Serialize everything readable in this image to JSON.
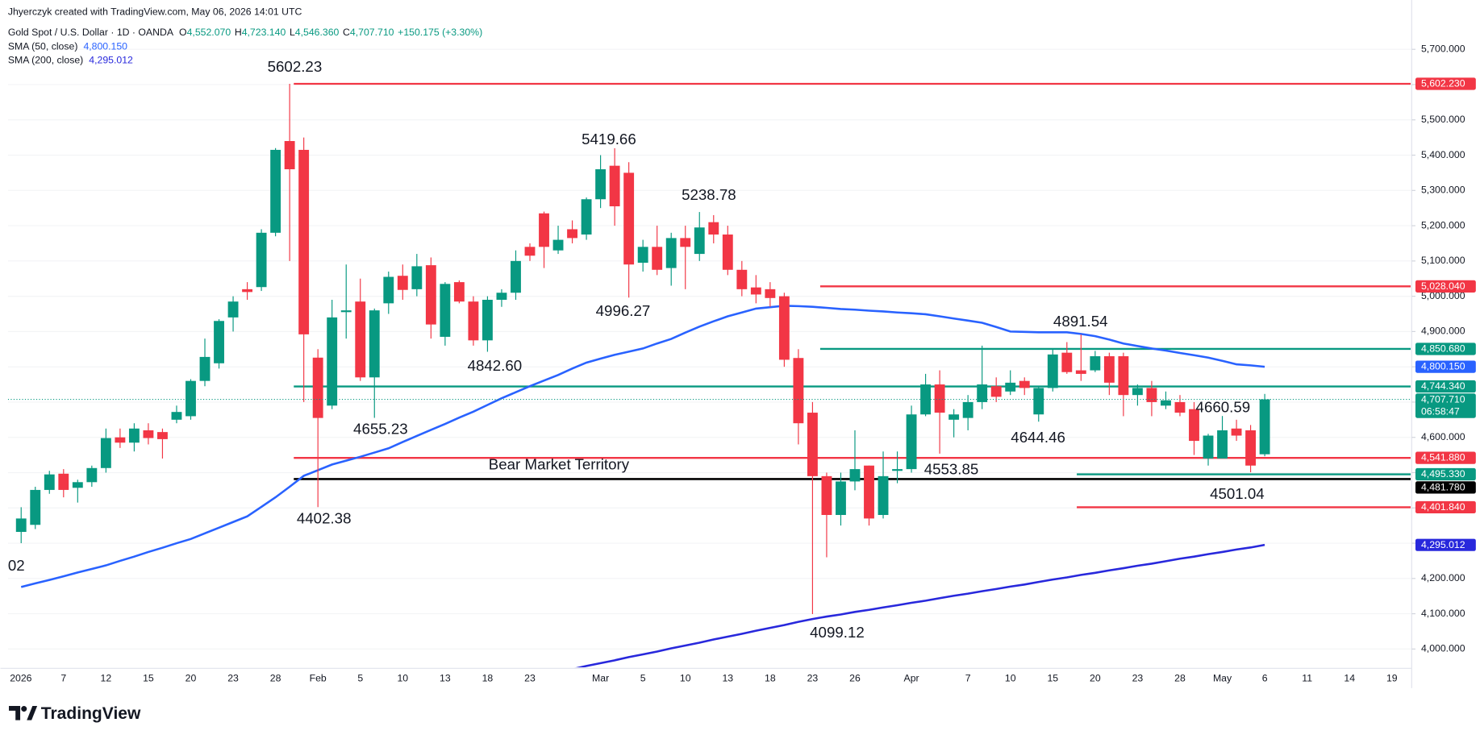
{
  "chart_data": {
    "type": "candlestick",
    "credit": "Jhyerczyk created with TradingView.com, May 06, 2026 14:01 UTC",
    "title": "Gold Spot / U.S. Dollar · 1D · OANDA",
    "ohlc_legend": [
      {
        "key": "O",
        "value": "4,552.070"
      },
      {
        "key": "H",
        "value": "4,723.140"
      },
      {
        "key": "L",
        "value": "4,546.360"
      },
      {
        "key": "C",
        "value": "4,707.710"
      }
    ],
    "change": "+150.175 (+3.30%)",
    "up_color": "#089981",
    "down_color": "#f23645",
    "categories": [
      "2026",
      null,
      null,
      "7",
      null,
      null,
      "12",
      null,
      null,
      "15",
      null,
      null,
      "20",
      null,
      null,
      "23",
      null,
      null,
      "28",
      null,
      null,
      "Feb",
      null,
      null,
      "5",
      null,
      null,
      "10",
      null,
      null,
      "13",
      null,
      null,
      "18",
      null,
      null,
      "23",
      null,
      null,
      null,
      null,
      "Mar",
      null,
      null,
      "5",
      null,
      null,
      "10",
      null,
      null,
      "13",
      null,
      null,
      "18",
      null,
      null,
      "23",
      null,
      null,
      "26",
      null,
      null,
      null,
      "Apr",
      null,
      null,
      null,
      "7",
      null,
      null,
      "10",
      null,
      null,
      "15",
      null,
      null,
      "20",
      null,
      null,
      "23",
      null,
      null,
      "28",
      null,
      null,
      "May",
      null,
      null,
      "6",
      null,
      null,
      "11",
      null,
      null,
      "14",
      null,
      null,
      "19"
    ],
    "open": [
      4332,
      4352,
      4451,
      4497,
      4457,
      4473,
      4513,
      4600,
      4585,
      4620,
      4615,
      4650,
      4660,
      4760,
      4810,
      4940,
      5020,
      5026,
      5180,
      5440,
      5415,
      4826,
      4690,
      4955,
      4985,
      4770,
      4980,
      5058,
      5020,
      5088,
      4885,
      5040,
      4985,
      4875,
      4990,
      5010,
      5140,
      5235,
      5130,
      5190,
      5175,
      5275,
      5370,
      5350,
      5095,
      5140,
      5080,
      5165,
      5120,
      5210,
      5175,
      5075,
      5025,
      5020,
      5000,
      4825,
      4670,
      4490,
      4380,
      4475,
      4520,
      4380,
      4505,
      4510,
      4665,
      4750,
      4650,
      4655,
      4700,
      4745,
      4730,
      4760,
      4665,
      4740,
      4840,
      4790,
      4790,
      4830,
      4830,
      4720,
      4740,
      4690,
      4700,
      4680,
      4540,
      4540,
      4625,
      4620,
      4552.07,
      null,
      null,
      null,
      null,
      null,
      null,
      null,
      null,
      null
    ],
    "high": [
      4402,
      4460,
      4505,
      4510,
      4480,
      4520,
      4625,
      4625,
      4640,
      4640,
      4625,
      4690,
      4765,
      4880,
      4935,
      5000,
      5040,
      5190,
      5420,
      5602.23,
      5450,
      4850,
      4990,
      5090,
      5050,
      4965,
      5070,
      5090,
      5120,
      5110,
      5040,
      5045,
      5000,
      5000,
      5020,
      5130,
      5150,
      5240,
      5200,
      5215,
      5280,
      5400,
      5419.66,
      5380,
      5160,
      5200,
      5180,
      5200,
      5238.78,
      5230,
      5200,
      5100,
      5060,
      5040,
      5010,
      4850,
      4700,
      4500,
      4500,
      4620,
      4520,
      4560,
      4560,
      4690,
      4780,
      4790,
      4680,
      4720,
      4860,
      4770,
      4790,
      4770,
      4745,
      4850,
      4870,
      4891.54,
      4845,
      4840,
      4840,
      4750,
      4760,
      4730,
      4720,
      4700,
      4610,
      4660.59,
      4650,
      4635,
      4723.14,
      null,
      null,
      null,
      null,
      null,
      null,
      null,
      null,
      null
    ],
    "low": [
      4300,
      4340,
      4440,
      4430,
      4415,
      4460,
      4500,
      4570,
      4560,
      4580,
      4540,
      4640,
      4650,
      4745,
      4795,
      4900,
      4990,
      5015,
      5170,
      5100,
      4700,
      4402.38,
      4680,
      4880,
      4760,
      4655.23,
      4950,
      4990,
      5000,
      4880,
      4860,
      4980,
      4860,
      4842.6,
      4970,
      4990,
      5100,
      5080,
      5120,
      5150,
      5160,
      5250,
      5200,
      4996.27,
      5070,
      5060,
      5030,
      5020,
      5100,
      5150,
      5060,
      5000,
      4980,
      4970,
      4800,
      4580,
      4099.12,
      4260,
      4350,
      4450,
      4350,
      4370,
      4470,
      4500,
      4660,
      4553.85,
      4600,
      4620,
      4680,
      4700,
      4720,
      4720,
      4644.46,
      4730,
      4780,
      4760,
      4785,
      4720,
      4660,
      4690,
      4660,
      4680,
      4660,
      4550,
      4520,
      4540,
      4590,
      4501.04,
      4546.36,
      null,
      null,
      null,
      null,
      null,
      null,
      null,
      null,
      null
    ],
    "close": [
      4370,
      4451,
      4495,
      4451,
      4473,
      4513,
      4598,
      4585,
      4625,
      4598,
      4595,
      4672,
      4760,
      4828,
      4930,
      4985,
      5012,
      5180,
      5415,
      5360,
      4892,
      4655,
      4940,
      4960,
      4770,
      4960,
      5055,
      5018,
      5085,
      4920,
      5035,
      4985,
      4875,
      4990,
      5010,
      5100,
      5115,
      5140,
      5160,
      5165,
      5275,
      5360,
      5255,
      5090,
      5140,
      5075,
      5165,
      5140,
      5195,
      5175,
      5075,
      5020,
      5005,
      4995,
      4820,
      4640,
      4490,
      4380,
      4475,
      4510,
      4370,
      4490,
      4510,
      4665,
      4750,
      4670,
      4665,
      4700,
      4750,
      4715,
      4755,
      4740,
      4740,
      4835,
      4785,
      4780,
      4830,
      4755,
      4720,
      4740,
      4700,
      4705,
      4670,
      4590,
      4605,
      4620,
      4605,
      4520,
      4707.71,
      null,
      null,
      null,
      null,
      null,
      null,
      null,
      null,
      null
    ],
    "overlays": [
      {
        "name": "SMA (50, close)",
        "last": "4,800.150",
        "color": "#2962ff",
        "values": [
          4176,
          4186,
          4196,
          4206,
          4217,
          4227,
          4237,
          4250,
          4262,
          4275,
          4287,
          4300,
          4312,
          4328,
          4344,
          4360,
          4376,
          4403,
          4430,
          4460,
          4491,
          4507,
          4523,
          4534,
          4545,
          4557,
          4569,
          4587,
          4604,
          4621,
          4638,
          4656,
          4673,
          4692,
          4711,
          4728,
          4745,
          4761,
          4777,
          4795,
          4812,
          4823,
          4834,
          4843,
          4852,
          4866,
          4879,
          4897,
          4914,
          4929,
          4943,
          4954,
          4965,
          4969,
          4973,
          4972,
          4970,
          4967,
          4964,
          4962,
          4959,
          4957,
          4954,
          4952,
          4949,
          4943,
          4937,
          4931,
          4925,
          4913,
          4900,
          4899,
          4898,
          4898,
          4898,
          4893,
          4887,
          4877,
          4866,
          4859,
          4852,
          4846,
          4839,
          4833,
          4826,
          4817,
          4807,
          4804,
          4800.15,
          null,
          null,
          null,
          null,
          null,
          null,
          null,
          null,
          null
        ]
      },
      {
        "name": "SMA (200, close)",
        "last": "4,295.012",
        "color": "#2828dc",
        "values": [
          null,
          null,
          null,
          null,
          null,
          null,
          null,
          null,
          null,
          null,
          null,
          null,
          null,
          null,
          null,
          null,
          null,
          null,
          null,
          null,
          null,
          null,
          null,
          null,
          null,
          null,
          null,
          null,
          null,
          null,
          null,
          null,
          null,
          null,
          null,
          null,
          null,
          null,
          3935,
          3943,
          3952,
          3960,
          3968,
          3977,
          3985,
          3993,
          4002,
          4010,
          4018,
          4027,
          4035,
          4043,
          4052,
          4060,
          4068,
          4077,
          4085,
          4092,
          4098,
          4105,
          4111,
          4118,
          4124,
          4131,
          4137,
          4144,
          4151,
          4157,
          4164,
          4170,
          4177,
          4183,
          4190,
          4197,
          4203,
          4210,
          4216,
          4223,
          4229,
          4236,
          4242,
          4249,
          4256,
          4262,
          4269,
          4275,
          4282,
          4288,
          4295.012,
          null,
          null,
          null,
          null,
          null,
          null,
          null,
          null,
          null
        ]
      }
    ],
    "levels": [
      {
        "value": 5602.23,
        "label": "5,602.230",
        "color": "#f23645"
      },
      {
        "value": 5028.04,
        "label": "5,028.040",
        "color": "#f23645"
      },
      {
        "value": 4850.68,
        "label": "4,850.680",
        "color": "#089981"
      },
      {
        "value": 4744.34,
        "label": "4,744.340",
        "color": "#089981"
      },
      {
        "value": 4541.88,
        "label": "4,541.880",
        "color": "#f23645"
      },
      {
        "value": 4481.78,
        "label": "4,481.780",
        "color": "#000000"
      },
      {
        "value": 4495.33,
        "label": "4,495.330",
        "color": "#089981"
      },
      {
        "value": 4401.84,
        "label": "4,401.840",
        "color": "#f23645"
      }
    ],
    "last_price": {
      "label": "4,707.710",
      "countdown": "06:58:47"
    },
    "annotations": [
      "02",
      "5602.23",
      "5419.66",
      "5238.78",
      "4996.27",
      "4842.60",
      "4655.23",
      "4402.38",
      "4099.12",
      "4891.54",
      "4644.46",
      "4553.85",
      "4660.59",
      "4501.04"
    ],
    "zone_label": "Bear Market Territory",
    "ylim": [
      3948,
      5765
    ],
    "yticks": [
      {
        "value": 4000,
        "label": "4,000.000"
      },
      {
        "value": 4100,
        "label": "4,100.000"
      },
      {
        "value": 4200,
        "label": "4,200.000"
      },
      {
        "value": 4300,
        "label": "4,300.000"
      },
      {
        "value": 4400,
        "label": "4,400.000"
      },
      {
        "value": 4500,
        "label": "4,500.000"
      },
      {
        "value": 4600,
        "label": "4,600.000"
      },
      {
        "value": 4700,
        "label": "4,700.000"
      },
      {
        "value": 4800,
        "label": "4,800.000"
      },
      {
        "value": 4900,
        "label": "4,900.000"
      },
      {
        "value": 5000,
        "label": "5,000.000"
      },
      {
        "value": 5100,
        "label": "5,100.000"
      },
      {
        "value": 5200,
        "label": "5,200.000"
      },
      {
        "value": 5300,
        "label": "5,300.000"
      },
      {
        "value": 5400,
        "label": "5,400.000"
      },
      {
        "value": 5500,
        "label": "5,500.000"
      },
      {
        "value": 5600,
        "label": "5,600.000"
      },
      {
        "value": 5700,
        "label": "5,700.000"
      }
    ],
    "logo": "TradingView"
  }
}
